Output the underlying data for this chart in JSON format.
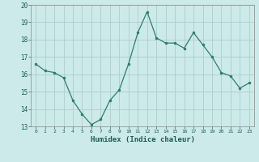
{
  "x": [
    0,
    1,
    2,
    3,
    4,
    5,
    6,
    7,
    8,
    9,
    10,
    11,
    12,
    13,
    14,
    15,
    16,
    17,
    18,
    19,
    20,
    21,
    22,
    23
  ],
  "y": [
    16.6,
    16.2,
    16.1,
    15.8,
    14.5,
    13.7,
    13.1,
    13.4,
    14.5,
    15.1,
    16.6,
    18.4,
    19.6,
    18.1,
    17.8,
    17.8,
    17.5,
    18.4,
    17.7,
    17.0,
    16.1,
    15.9,
    15.2,
    15.5
  ],
  "xlabel": "Humidex (Indice chaleur)",
  "ylim": [
    13,
    20
  ],
  "xlim_min": -0.5,
  "xlim_max": 23.5,
  "yticks": [
    13,
    14,
    15,
    16,
    17,
    18,
    19,
    20
  ],
  "xticks": [
    0,
    1,
    2,
    3,
    4,
    5,
    6,
    7,
    8,
    9,
    10,
    11,
    12,
    13,
    14,
    15,
    16,
    17,
    18,
    19,
    20,
    21,
    22,
    23
  ],
  "line_color": "#2e7d6e",
  "marker_color": "#2e7d6e",
  "bg_color": "#cceaea",
  "grid_color": "#b0cccc"
}
